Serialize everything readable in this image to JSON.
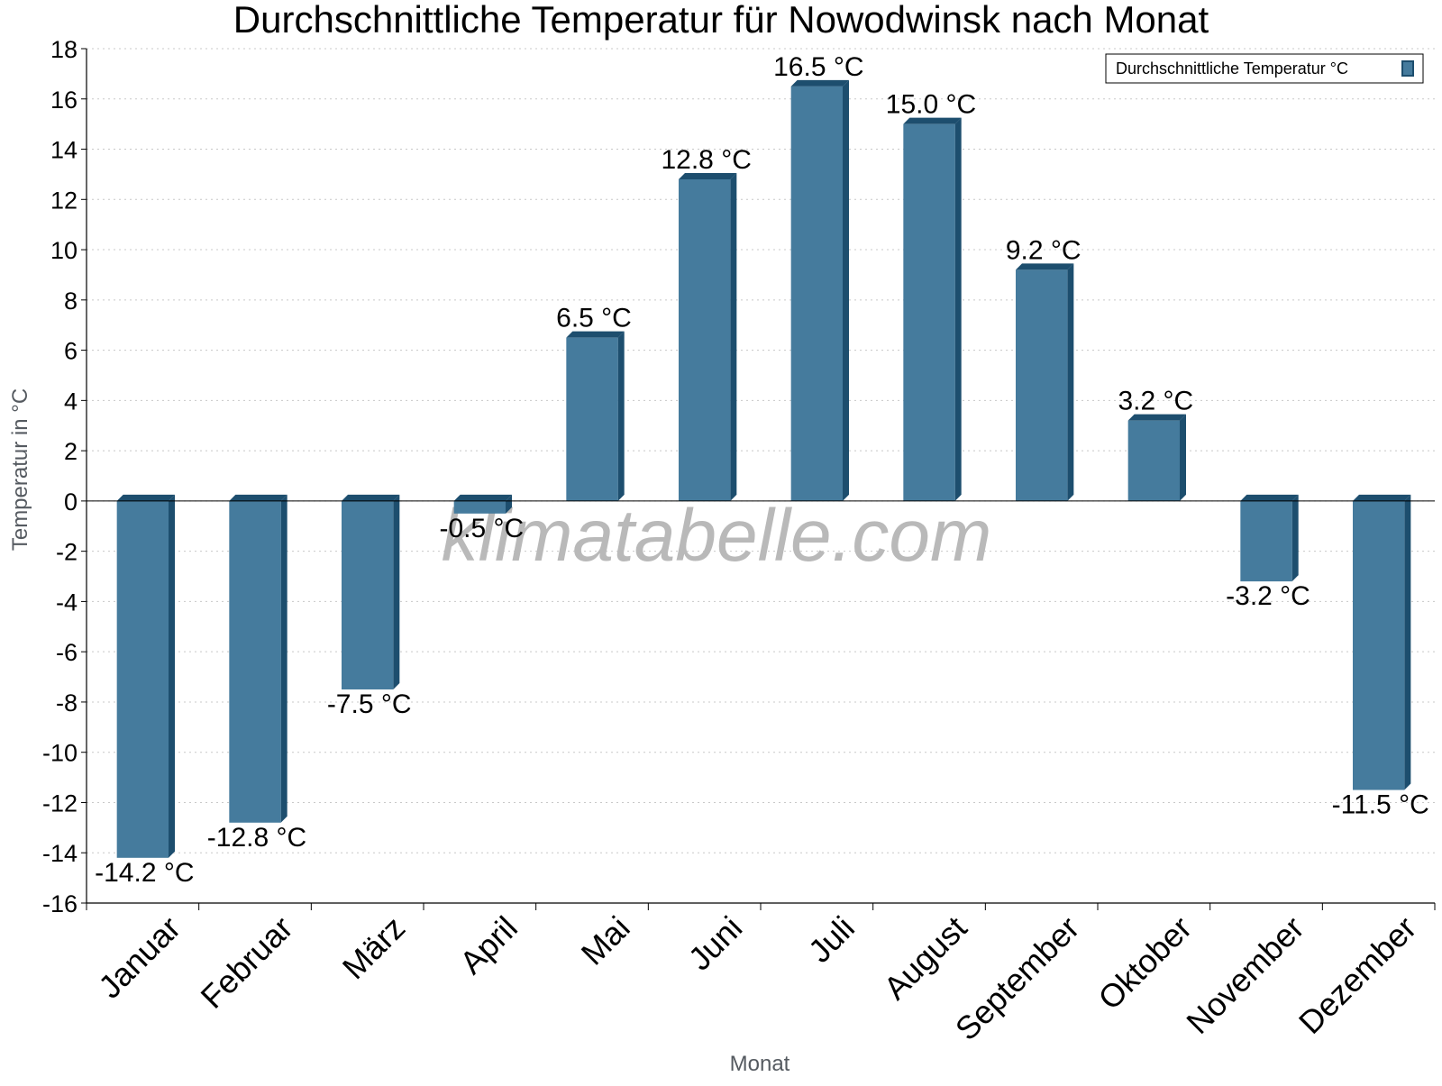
{
  "chart_data": {
    "type": "bar",
    "title": "Durchschnittliche Temperatur für Nowodwinsk nach Monat",
    "xlabel": "Monat",
    "ylabel": "Temperatur in °C",
    "ylim": [
      -16,
      18
    ],
    "yticks": [
      18,
      16,
      14,
      12,
      10,
      8,
      6,
      4,
      2,
      0,
      -2,
      -4,
      -6,
      -8,
      -10,
      -12,
      -14,
      -16
    ],
    "grid": true,
    "legend_position": "top-right",
    "categories": [
      "Januar",
      "Februar",
      "März",
      "April",
      "Mai",
      "Juni",
      "Juli",
      "August",
      "September",
      "Oktober",
      "November",
      "Dezember"
    ],
    "series": [
      {
        "name": "Durchschnittliche Temperatur °C",
        "values": [
          -14.2,
          -12.8,
          -7.5,
          -0.5,
          6.5,
          12.8,
          16.5,
          15.0,
          9.2,
          3.2,
          -3.2,
          -11.5
        ],
        "labels": [
          "-14.2 °C",
          "-12.8 °C",
          "-7.5 °C",
          "-0.5 °C",
          "6.5 °C",
          "12.8 °C",
          "16.5 °C",
          "15.0 °C",
          "9.2 °C",
          "3.2 °C",
          "-3.2 °C",
          "-11.5 °C"
        ]
      }
    ],
    "colors": {
      "bar": "#457b9d",
      "bar_side": "#1d4e6e",
      "grid": "#c8c8c8"
    },
    "watermark": "klimatabelle.com"
  }
}
